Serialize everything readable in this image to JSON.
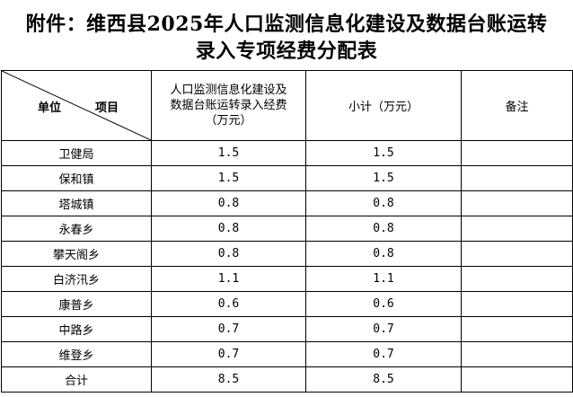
{
  "title": {
    "line1": "附件：维西县2025年人口监测信息化建设及数据台账运转",
    "line2": "录入专项经费分配表"
  },
  "header": {
    "corner_unit": "单位",
    "corner_item": "项目",
    "col_main_lines": [
      "人口监测信息化建设及",
      "数据台账运转录入经费",
      "（万元）"
    ],
    "col_subtotal": "小计（万元）",
    "col_remark": "备注"
  },
  "rows": [
    {
      "unit": "卫健局",
      "amount": "1.5",
      "subtotal": "1.5",
      "remark": ""
    },
    {
      "unit": "保和镇",
      "amount": "1.5",
      "subtotal": "1.5",
      "remark": ""
    },
    {
      "unit": "塔城镇",
      "amount": "0.8",
      "subtotal": "0.8",
      "remark": ""
    },
    {
      "unit": "永春乡",
      "amount": "0.8",
      "subtotal": "0.8",
      "remark": ""
    },
    {
      "unit": "攀天阁乡",
      "amount": "0.8",
      "subtotal": "0.8",
      "remark": ""
    },
    {
      "unit": "白济汛乡",
      "amount": "1.1",
      "subtotal": "1.1",
      "remark": ""
    },
    {
      "unit": "康普乡",
      "amount": "0.6",
      "subtotal": "0.6",
      "remark": ""
    },
    {
      "unit": "中路乡",
      "amount": "0.7",
      "subtotal": "0.7",
      "remark": ""
    },
    {
      "unit": "维登乡",
      "amount": "0.7",
      "subtotal": "0.7",
      "remark": ""
    },
    {
      "unit": "合计",
      "amount": "8.5",
      "subtotal": "8.5",
      "remark": ""
    }
  ]
}
